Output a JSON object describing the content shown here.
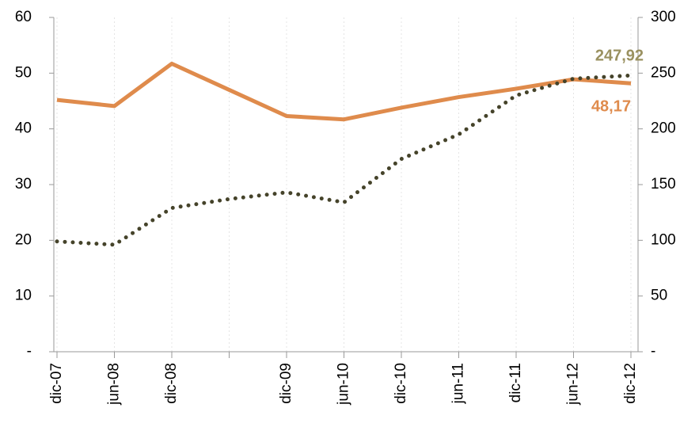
{
  "chart_data": {
    "type": "line",
    "categories": [
      "dic-07",
      "jun-08",
      "dic-08",
      null,
      "dic-09",
      "jun-10",
      "dic-10",
      "jun-11",
      "dic-11",
      "jun-12",
      "dic-12"
    ],
    "series": [
      {
        "color": "#df8b4c",
        "style": "solid",
        "label_color": "#df8b4c",
        "values": [
          45.2,
          44.1,
          51.7,
          47,
          42.3,
          41.7,
          43.8,
          45.7,
          47.2,
          48.9,
          48.17
        ],
        "value_labels": [
          null,
          null,
          null,
          null,
          null,
          null,
          null,
          null,
          null,
          null,
          "48,17"
        ]
      },
      {
        "color": "#45432a",
        "style": "dotted",
        "axis": "y2",
        "label_color": "#9a9160",
        "values": [
          99,
          96,
          129,
          137,
          143,
          134,
          173,
          195,
          230,
          245,
          247.92
        ],
        "value_labels": [
          null,
          null,
          null,
          null,
          null,
          null,
          null,
          null,
          null,
          null,
          "247,92"
        ]
      }
    ],
    "ylim": [
      0,
      60
    ],
    "yticks": [
      {
        "value": 0,
        "label": "-"
      },
      10,
      20,
      30,
      40,
      50,
      60
    ],
    "y2lim": [
      0,
      300
    ],
    "y2ticks": [
      {
        "value": 0,
        "label": "-"
      },
      50,
      100,
      150,
      200,
      250,
      300
    ],
    "grid": true
  }
}
